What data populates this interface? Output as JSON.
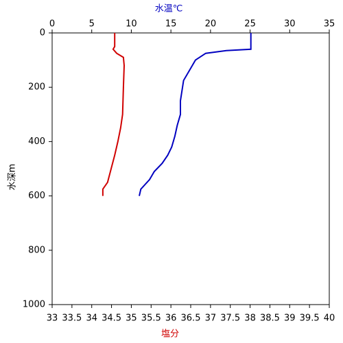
{
  "chart_data": {
    "type": "line",
    "x2label": "水温℃",
    "xlabel": "塩分",
    "ylabel": "水深m",
    "x2lim": [
      0,
      35
    ],
    "x2ticks": [
      0,
      5,
      10,
      15,
      20,
      25,
      30,
      35
    ],
    "xlim": [
      33,
      40
    ],
    "xticks": [
      33,
      33.5,
      34,
      34.5,
      35,
      35.5,
      36,
      36.5,
      37,
      37.5,
      38,
      38.5,
      39,
      39.5,
      40
    ],
    "ylim": [
      0,
      1000
    ],
    "yticks": [
      0,
      200,
      400,
      600,
      800,
      1000
    ],
    "y_inverted": true,
    "series": [
      {
        "axis": "x2",
        "color": "#0000c0",
        "depths": [
          0,
          60,
          65,
          75,
          100,
          130,
          175,
          250,
          300,
          340,
          380,
          420,
          450,
          480,
          510,
          540,
          575,
          600
        ],
        "values": [
          25.1,
          25.1,
          22.0,
          19.4,
          18.1,
          17.5,
          16.6,
          16.2,
          16.2,
          15.8,
          15.5,
          15.1,
          14.6,
          13.9,
          12.9,
          12.3,
          11.2,
          11.0
        ]
      },
      {
        "axis": "x",
        "color": "#d00000",
        "depths": [
          0,
          50,
          60,
          75,
          90,
          120,
          200,
          300,
          350,
          400,
          450,
          500,
          550,
          575,
          600
        ],
        "values": [
          34.58,
          34.58,
          34.54,
          34.63,
          34.8,
          34.82,
          34.8,
          34.78,
          34.73,
          34.66,
          34.58,
          34.49,
          34.4,
          34.28,
          34.28
        ]
      }
    ]
  }
}
